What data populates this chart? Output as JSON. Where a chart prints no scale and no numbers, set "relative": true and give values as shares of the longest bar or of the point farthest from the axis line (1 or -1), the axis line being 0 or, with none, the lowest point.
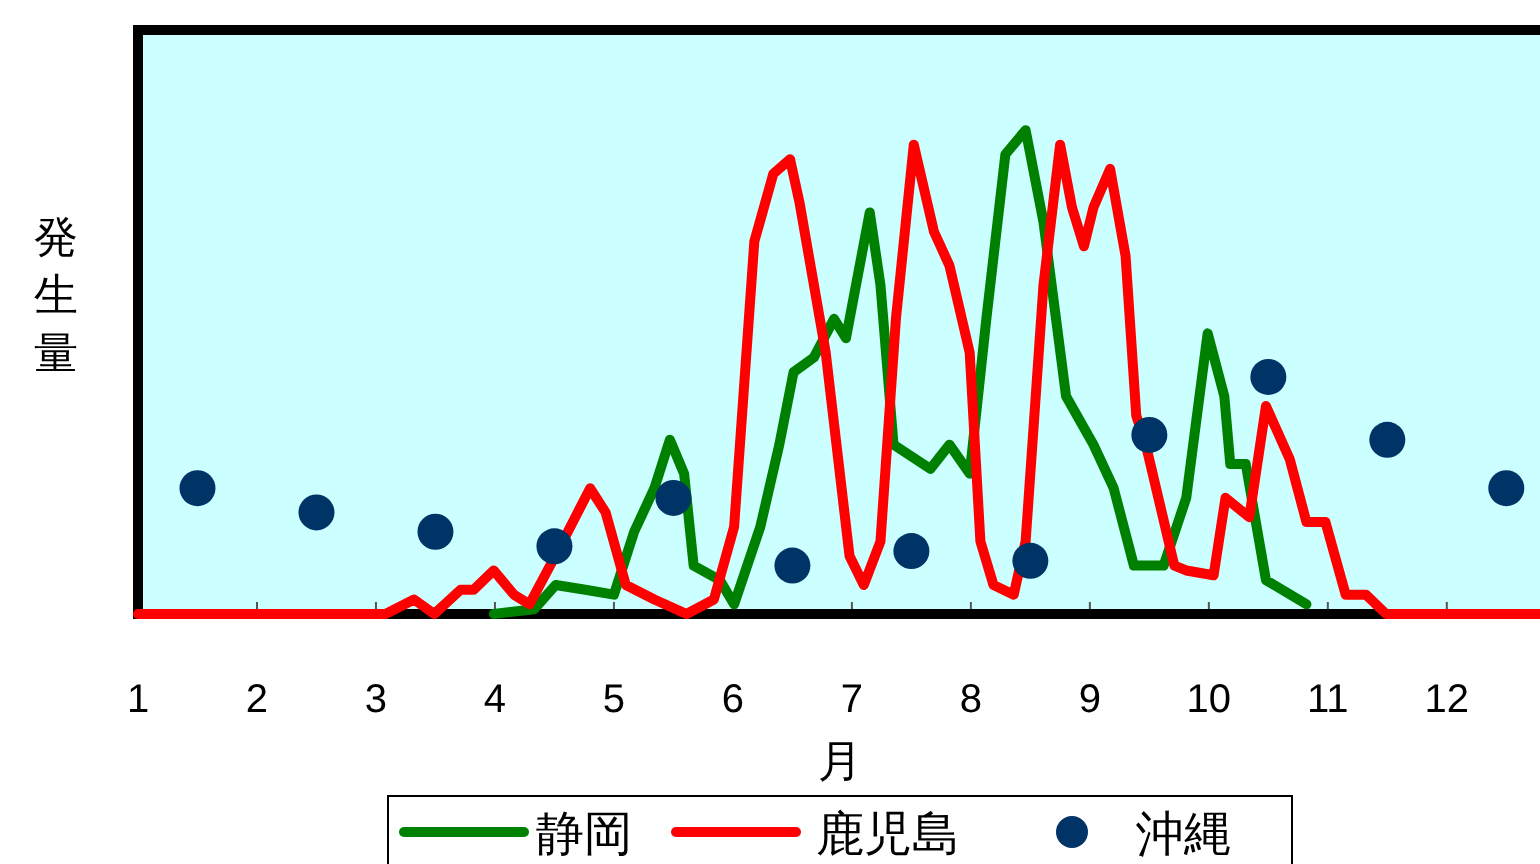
{
  "chart_data": {
    "type": "line",
    "relative": true,
    "ylabel": "発生量",
    "xlabel": "月",
    "xlim": [
      1,
      12.8
    ],
    "xticks": [
      1,
      2,
      3,
      4,
      5,
      6,
      7,
      8,
      9,
      10,
      11,
      12
    ],
    "legend": "bottom",
    "series": [
      {
        "name": "静岡",
        "type": "line",
        "marker": "none",
        "color": "#008000",
        "x": [
          3.99,
          4.33,
          4.51,
          4.76,
          5.0,
          5.17,
          5.34,
          5.47,
          5.59,
          5.67,
          5.89,
          6.01,
          6.23,
          6.39,
          6.51,
          6.68,
          6.85,
          6.95,
          7.15,
          7.24,
          7.35,
          7.66,
          7.82,
          7.99,
          8.13,
          8.29,
          8.46,
          8.61,
          8.8,
          9.03,
          9.2,
          9.37,
          9.62,
          9.81,
          9.99,
          10.13,
          10.18,
          10.31,
          10.48,
          10.82
        ],
        "values": [
          0,
          0.01,
          0.06,
          0.05,
          0.04,
          0.17,
          0.26,
          0.36,
          0.29,
          0.1,
          0.07,
          0.02,
          0.18,
          0.35,
          0.5,
          0.53,
          0.61,
          0.57,
          0.83,
          0.68,
          0.35,
          0.3,
          0.35,
          0.29,
          0.61,
          0.95,
          1,
          0.81,
          0.45,
          0.35,
          0.26,
          0.1,
          0.1,
          0.24,
          0.58,
          0.45,
          0.31,
          0.31,
          0.07,
          0.02
        ]
      },
      {
        "name": "鹿児島",
        "type": "line",
        "marker": "none",
        "color": "#ff0000",
        "x": [
          1.0,
          3.08,
          3.32,
          3.49,
          3.71,
          3.82,
          3.99,
          4.16,
          4.29,
          4.55,
          4.8,
          4.93,
          5.1,
          5.34,
          5.61,
          5.84,
          6.01,
          6.18,
          6.34,
          6.48,
          6.56,
          6.78,
          6.98,
          7.1,
          7.24,
          7.37,
          7.52,
          7.69,
          7.82,
          7.99,
          8.08,
          8.19,
          8.36,
          8.46,
          8.61,
          8.75,
          8.85,
          8.95,
          9.03,
          9.17,
          9.3,
          9.39,
          9.47,
          9.71,
          9.81,
          10.04,
          10.14,
          10.34,
          10.48,
          10.68,
          10.82,
          10.98,
          11.15,
          11.32,
          11.49,
          11.72,
          12.16,
          12.78
        ],
        "values": [
          0,
          0,
          0.03,
          0,
          0.05,
          0.05,
          0.09,
          0.04,
          0.02,
          0.14,
          0.26,
          0.21,
          0.06,
          0.03,
          0,
          0.03,
          0.18,
          0.77,
          0.91,
          0.94,
          0.85,
          0.54,
          0.12,
          0.06,
          0.15,
          0.61,
          0.97,
          0.79,
          0.72,
          0.54,
          0.15,
          0.06,
          0.04,
          0.15,
          0.68,
          0.97,
          0.84,
          0.76,
          0.84,
          0.92,
          0.74,
          0.41,
          0.35,
          0.1,
          0.09,
          0.08,
          0.24,
          0.2,
          0.43,
          0.32,
          0.19,
          0.19,
          0.04,
          0.04,
          0,
          0,
          0,
          0
        ]
      },
      {
        "name": "沖縄",
        "type": "scatter",
        "marker": "circle",
        "color": "#003366",
        "x": [
          1.5,
          2.5,
          3.5,
          4.5,
          5.5,
          6.5,
          7.5,
          8.5,
          9.5,
          10.5,
          11.5,
          12.5
        ],
        "values": [
          0.26,
          0.21,
          0.17,
          0.14,
          0.24,
          0.1,
          0.13,
          0.11,
          0.37,
          0.49,
          0.36,
          0.26
        ]
      }
    ]
  }
}
